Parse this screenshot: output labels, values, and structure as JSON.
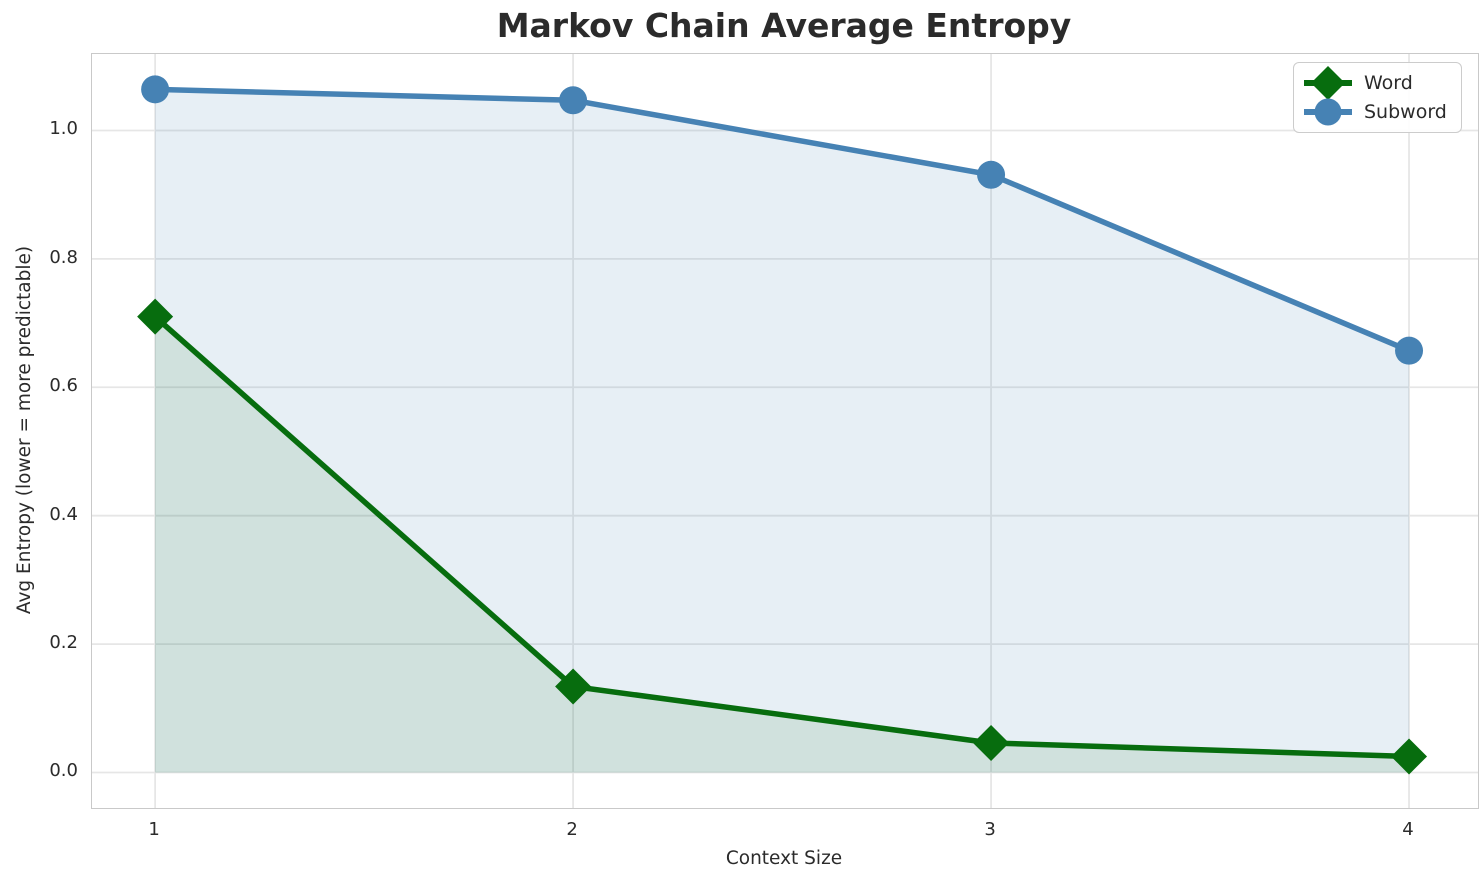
{
  "chart_data": {
    "type": "line",
    "title": "Markov Chain Average Entropy",
    "xlabel": "Context Size",
    "ylabel": "Avg Entropy (lower = more predictable)",
    "x": [
      1,
      2,
      3,
      4
    ],
    "series": [
      {
        "name": "Word",
        "values": [
          0.71,
          0.134,
          0.046,
          0.025
        ],
        "color": "#076d0e",
        "fill_color": "rgba(7,109,14,0.10)",
        "marker": "diamond"
      },
      {
        "name": "Subword",
        "values": [
          1.064,
          1.047,
          0.931,
          0.657
        ],
        "color": "#4682b4",
        "fill_color": "rgba(70,130,180,0.13)",
        "marker": "circle"
      }
    ],
    "fill_baseline": 0,
    "xticks": [
      1,
      2,
      3,
      4
    ],
    "xtick_labels": [
      "1",
      "2",
      "3",
      "4"
    ],
    "yticks": [
      0,
      0.2,
      0.4,
      0.6,
      0.8,
      1.0
    ],
    "ytick_labels": [
      "0.0",
      "0.2",
      "0.4",
      "0.6",
      "0.8",
      "1.0"
    ],
    "xlim": [
      0.849,
      4.165
    ],
    "ylim": [
      -0.0553,
      1.1191
    ],
    "grid": true,
    "legend_position": "upper right",
    "legend_entries": [
      "Word",
      "Subword"
    ]
  },
  "style": {
    "background": "#ffffff",
    "grid_color": "#e6e6e6",
    "spine_color": "#c9c9c9",
    "text_color": "#2b2b2b",
    "legend_border_color": "#cccccc"
  }
}
